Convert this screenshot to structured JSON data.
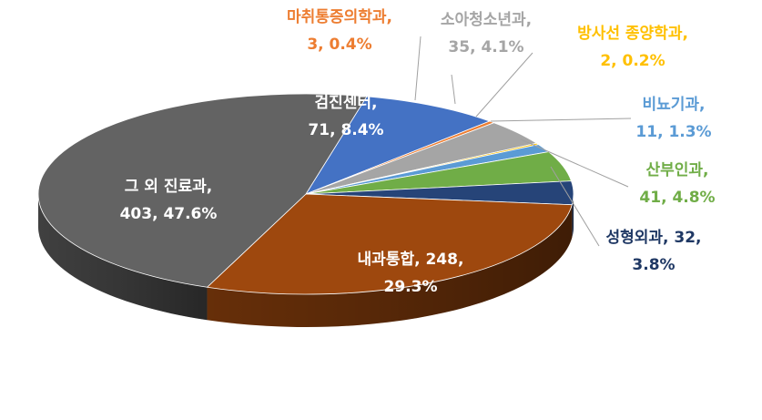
{
  "chart_data": {
    "type": "pie",
    "title": "",
    "three_d": true,
    "slices": [
      {
        "name": "검진센터",
        "value": 71,
        "percent": "8.4%",
        "color": "#4472c4",
        "label_color": "#ffffff",
        "label_lines": [
          "검진센터,",
          "71, 8.4%"
        ],
        "label_position": "inside"
      },
      {
        "name": "마취통증의학과",
        "value": 3,
        "percent": "0.4%",
        "color": "#ed7d31",
        "label_color": "#ed7d31",
        "label_lines": [
          "마취통증의학과,",
          "3, 0.4%"
        ],
        "label_position": "outside"
      },
      {
        "name": "소아청소년과",
        "value": 35,
        "percent": "4.1%",
        "color": "#a5a5a5",
        "label_color": "#a5a5a5",
        "label_lines": [
          "소아청소년과,",
          "35, 4.1%"
        ],
        "label_position": "outside"
      },
      {
        "name": "방사선 종양학과",
        "value": 2,
        "percent": "0.2%",
        "color": "#ffc000",
        "label_color": "#ffc000",
        "label_lines": [
          "방사선 종양학과,",
          "2, 0.2%"
        ],
        "label_position": "outside"
      },
      {
        "name": "비뇨기과",
        "value": 11,
        "percent": "1.3%",
        "color": "#5b9bd5",
        "label_color": "#5b9bd5",
        "label_lines": [
          "비뇨기과,",
          "11, 1.3%"
        ],
        "label_position": "outside"
      },
      {
        "name": "산부인과",
        "value": 41,
        "percent": "4.8%",
        "color": "#70ad47",
        "label_color": "#70ad47",
        "label_lines": [
          "산부인과,",
          "41, 4.8%"
        ],
        "label_position": "outside"
      },
      {
        "name": "성형외과",
        "value": 32,
        "percent": "3.8%",
        "color": "#264478",
        "label_color": "#1f3864",
        "label_lines": [
          "성형외과, 32,",
          "3.8%"
        ],
        "label_position": "outside"
      },
      {
        "name": "내과통합",
        "value": 248,
        "percent": "29.3%",
        "color": "#9e480e",
        "label_color": "#ffffff",
        "label_lines": [
          "내과통합, 248,",
          "29.3%"
        ],
        "label_position": "inside"
      },
      {
        "name": "그 외 진료과",
        "value": 403,
        "percent": "47.6%",
        "color": "#636363",
        "label_color": "#ffffff",
        "label_lines": [
          "그 외 진료과,",
          "403, 47.6%"
        ],
        "label_position": "inside"
      }
    ]
  }
}
